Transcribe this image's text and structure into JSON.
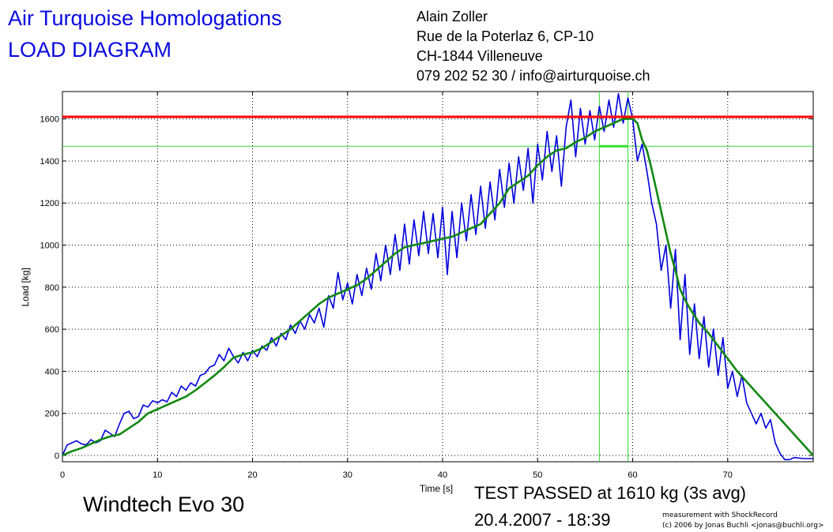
{
  "header": {
    "title_line1": "Air Turquoise Homologations",
    "title_line2": "LOAD DIAGRAM",
    "contact": [
      "Alain Zoller",
      "Rue de la Poterlaz 6, CP-10",
      "CH-1844 Villeneuve",
      "079 202 52 30 / info@airturquoise.ch"
    ]
  },
  "footer": {
    "model": "Windtech Evo 30",
    "result": "TEST PASSED at 1610 kg (3s avg)",
    "datetime": "20.4.2007 - 18:39",
    "credit_line1": "measurement with ShockRecord",
    "credit_line2": "(c) 2006 by Jonas Buchli <jonas@buchli.org>"
  },
  "colors": {
    "raw": "#0000dd",
    "avg": "#118811",
    "limit": "#ff0000",
    "marker": "#33dd33",
    "title": "#0a0ae0"
  },
  "chart_data": {
    "type": "line",
    "xlabel": "Time [s]",
    "ylabel": "Load [kg]",
    "xlim": [
      0,
      79
    ],
    "ylim": [
      -30,
      1730
    ],
    "xticks": [
      0,
      10,
      20,
      30,
      40,
      50,
      60,
      70
    ],
    "yticks": [
      0,
      200,
      400,
      600,
      800,
      1000,
      1200,
      1400,
      1600
    ],
    "grid": "dotted",
    "reference_lines": {
      "limit_load": 1610,
      "threshold_load": 1470,
      "window_start_s": 56.5,
      "window_end_s": 59.5
    },
    "series": [
      {
        "values": [
          [
            0,
            0
          ],
          [
            0.5,
            50
          ],
          [
            1,
            60
          ],
          [
            1.5,
            70
          ],
          [
            2,
            55
          ],
          [
            2.5,
            50
          ],
          [
            3,
            75
          ],
          [
            3.5,
            60
          ],
          [
            4,
            70
          ],
          [
            4.5,
            120
          ],
          [
            5,
            105
          ],
          [
            5.5,
            90
          ],
          [
            6,
            150
          ],
          [
            6.5,
            200
          ],
          [
            7,
            210
          ],
          [
            7.5,
            175
          ],
          [
            8,
            185
          ],
          [
            8.5,
            240
          ],
          [
            9,
            230
          ],
          [
            9.5,
            260
          ],
          [
            10,
            250
          ],
          [
            10.5,
            265
          ],
          [
            11,
            255
          ],
          [
            11.5,
            300
          ],
          [
            12,
            280
          ],
          [
            12.5,
            330
          ],
          [
            13,
            310
          ],
          [
            13.5,
            345
          ],
          [
            14,
            330
          ],
          [
            14.5,
            380
          ],
          [
            15,
            390
          ],
          [
            15.5,
            420
          ],
          [
            16,
            430
          ],
          [
            16.5,
            480
          ],
          [
            17,
            450
          ],
          [
            17.5,
            510
          ],
          [
            18,
            470
          ],
          [
            18.5,
            440
          ],
          [
            19,
            490
          ],
          [
            19.5,
            450
          ],
          [
            20,
            500
          ],
          [
            20.5,
            470
          ],
          [
            21,
            520
          ],
          [
            21.5,
            500
          ],
          [
            22,
            560
          ],
          [
            22.5,
            520
          ],
          [
            23,
            580
          ],
          [
            23.5,
            550
          ],
          [
            24,
            620
          ],
          [
            24.5,
            580
          ],
          [
            25,
            640
          ],
          [
            25.5,
            600
          ],
          [
            26,
            670
          ],
          [
            26.5,
            630
          ],
          [
            27,
            700
          ],
          [
            27.5,
            610
          ],
          [
            28,
            760
          ],
          [
            28.5,
            700
          ],
          [
            29,
            870
          ],
          [
            29.5,
            740
          ],
          [
            30,
            820
          ],
          [
            30.5,
            720
          ],
          [
            31,
            860
          ],
          [
            31.5,
            760
          ],
          [
            32,
            890
          ],
          [
            32.5,
            790
          ],
          [
            33,
            960
          ],
          [
            33.5,
            830
          ],
          [
            34,
            1000
          ],
          [
            34.5,
            860
          ],
          [
            35,
            1050
          ],
          [
            35.5,
            880
          ],
          [
            36,
            1100
          ],
          [
            36.5,
            910
          ],
          [
            37,
            1120
          ],
          [
            37.5,
            950
          ],
          [
            38,
            1160
          ],
          [
            38.5,
            960
          ],
          [
            39,
            1150
          ],
          [
            39.5,
            940
          ],
          [
            40,
            1180
          ],
          [
            40.5,
            860
          ],
          [
            41,
            1160
          ],
          [
            41.5,
            940
          ],
          [
            42,
            1200
          ],
          [
            42.5,
            1020
          ],
          [
            43,
            1240
          ],
          [
            43.5,
            1050
          ],
          [
            44,
            1280
          ],
          [
            44.5,
            1080
          ],
          [
            45,
            1300
          ],
          [
            45.5,
            1120
          ],
          [
            46,
            1360
          ],
          [
            46.5,
            1180
          ],
          [
            47,
            1390
          ],
          [
            47.5,
            1200
          ],
          [
            48,
            1420
          ],
          [
            48.5,
            1260
          ],
          [
            49,
            1460
          ],
          [
            49.5,
            1200
          ],
          [
            50,
            1480
          ],
          [
            50.5,
            1310
          ],
          [
            51,
            1540
          ],
          [
            51.5,
            1350
          ],
          [
            52,
            1520
          ],
          [
            52.5,
            1280
          ],
          [
            53,
            1560
          ],
          [
            53.5,
            1690
          ],
          [
            54,
            1420
          ],
          [
            54.5,
            1650
          ],
          [
            55,
            1480
          ],
          [
            55.5,
            1640
          ],
          [
            56,
            1500
          ],
          [
            56.5,
            1660
          ],
          [
            57,
            1540
          ],
          [
            57.5,
            1690
          ],
          [
            58,
            1560
          ],
          [
            58.5,
            1720
          ],
          [
            59,
            1580
          ],
          [
            59.5,
            1700
          ],
          [
            60,
            1600
          ],
          [
            60.5,
            1400
          ],
          [
            61,
            1480
          ],
          [
            61.5,
            1350
          ],
          [
            62,
            1200
          ],
          [
            62.5,
            1100
          ],
          [
            63,
            880
          ],
          [
            63.5,
            1000
          ],
          [
            64,
            700
          ],
          [
            64.5,
            980
          ],
          [
            65,
            550
          ],
          [
            65.5,
            860
          ],
          [
            66,
            480
          ],
          [
            66.5,
            720
          ],
          [
            67,
            460
          ],
          [
            67.5,
            660
          ],
          [
            68,
            420
          ],
          [
            68.5,
            600
          ],
          [
            69,
            380
          ],
          [
            69.5,
            560
          ],
          [
            70,
            320
          ],
          [
            70.5,
            400
          ],
          [
            71,
            280
          ],
          [
            71.5,
            380
          ],
          [
            72,
            250
          ],
          [
            72.5,
            200
          ],
          [
            73,
            150
          ],
          [
            73.5,
            200
          ],
          [
            74,
            130
          ],
          [
            74.5,
            170
          ],
          [
            75,
            60
          ],
          [
            75.5,
            10
          ],
          [
            76,
            -20
          ],
          [
            76.5,
            -20
          ],
          [
            77,
            -10
          ],
          [
            78,
            -15
          ],
          [
            79,
            -15
          ]
        ]
      },
      {
        "values": [
          [
            0,
            0
          ],
          [
            1,
            20
          ],
          [
            2,
            35
          ],
          [
            3,
            55
          ],
          [
            4,
            75
          ],
          [
            5,
            90
          ],
          [
            6,
            100
          ],
          [
            7,
            130
          ],
          [
            8,
            160
          ],
          [
            9,
            200
          ],
          [
            10,
            220
          ],
          [
            11,
            240
          ],
          [
            12,
            260
          ],
          [
            13,
            280
          ],
          [
            14,
            310
          ],
          [
            15,
            345
          ],
          [
            16,
            380
          ],
          [
            17,
            420
          ],
          [
            18,
            465
          ],
          [
            19,
            480
          ],
          [
            20,
            490
          ],
          [
            21,
            510
          ],
          [
            22,
            540
          ],
          [
            23,
            570
          ],
          [
            24,
            600
          ],
          [
            25,
            640
          ],
          [
            26,
            680
          ],
          [
            27,
            720
          ],
          [
            28,
            750
          ],
          [
            29,
            770
          ],
          [
            30,
            790
          ],
          [
            31,
            810
          ],
          [
            32,
            840
          ],
          [
            33,
            880
          ],
          [
            34,
            920
          ],
          [
            35,
            960
          ],
          [
            36,
            990
          ],
          [
            37,
            1000
          ],
          [
            38,
            1010
          ],
          [
            39,
            1020
          ],
          [
            40,
            1030
          ],
          [
            41,
            1040
          ],
          [
            42,
            1060
          ],
          [
            43,
            1080
          ],
          [
            44,
            1100
          ],
          [
            45,
            1150
          ],
          [
            46,
            1200
          ],
          [
            47,
            1270
          ],
          [
            48,
            1300
          ],
          [
            49,
            1330
          ],
          [
            50,
            1380
          ],
          [
            51,
            1420
          ],
          [
            52,
            1450
          ],
          [
            53,
            1460
          ],
          [
            54,
            1490
          ],
          [
            55,
            1510
          ],
          [
            56,
            1540
          ],
          [
            57,
            1560
          ],
          [
            58,
            1580
          ],
          [
            59,
            1600
          ],
          [
            60,
            1600
          ],
          [
            60.5,
            1580
          ],
          [
            61,
            1500
          ],
          [
            61.5,
            1450
          ],
          [
            62,
            1360
          ],
          [
            62.5,
            1260
          ],
          [
            63,
            1160
          ],
          [
            63.5,
            1060
          ],
          [
            64,
            960
          ],
          [
            64.5,
            880
          ],
          [
            65,
            790
          ],
          [
            65.5,
            740
          ],
          [
            66,
            700
          ],
          [
            67,
            630
          ],
          [
            68,
            580
          ],
          [
            69,
            520
          ],
          [
            70,
            460
          ],
          [
            71,
            400
          ],
          [
            72,
            350
          ],
          [
            73,
            300
          ],
          [
            74,
            250
          ],
          [
            75,
            200
          ],
          [
            76,
            150
          ],
          [
            77,
            100
          ],
          [
            78,
            50
          ],
          [
            79,
            0
          ]
        ]
      }
    ]
  }
}
